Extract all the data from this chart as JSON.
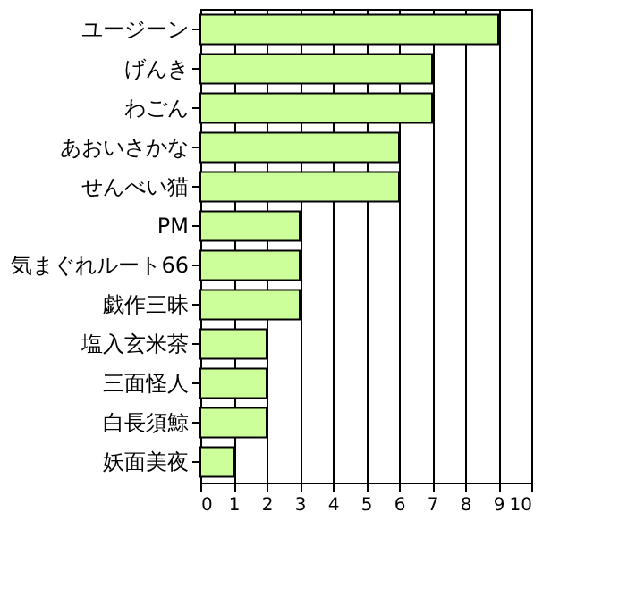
{
  "chart_data": {
    "type": "bar",
    "orientation": "horizontal",
    "categories": [
      "ユージーン",
      "げんき",
      "わごん",
      "あおいさかな",
      "せんべい猫",
      "PM",
      "気まぐれルート66",
      "戯作三昧",
      "塩入玄米茶",
      "三面怪人",
      "白長須鯨",
      "妖面美夜"
    ],
    "values": [
      9,
      7,
      7,
      6,
      6,
      3,
      3,
      3,
      2,
      2,
      2,
      1
    ],
    "color": "#ccff99",
    "xlim": [
      0,
      10
    ],
    "xticks": [
      0,
      1,
      2,
      3,
      4,
      5,
      6,
      7,
      8,
      9,
      10
    ],
    "grid": true
  }
}
